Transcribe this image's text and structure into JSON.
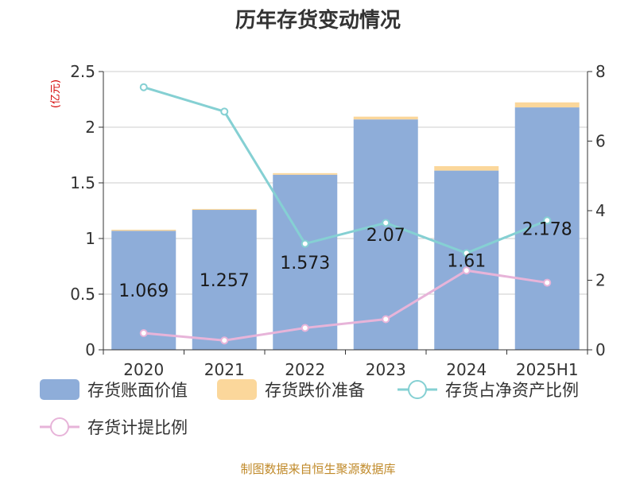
{
  "chart_data": {
    "type": "bar",
    "title": "历年存货变动情况",
    "y_unit_label": "(亿元)",
    "categories": [
      "2020",
      "2021",
      "2022",
      "2023",
      "2024",
      "2025H1"
    ],
    "ylim": [
      0,
      2.5
    ],
    "yticks": [
      "0",
      "0.5",
      "1",
      "1.5",
      "2",
      "2.5"
    ],
    "y2lim": [
      0,
      8
    ],
    "y2ticks": [
      "0",
      "2",
      "4",
      "6",
      "8"
    ],
    "grid": true,
    "legend_position": "bottom",
    "series": [
      {
        "name": "存货账面价值",
        "kind": "bar",
        "stack": "inv",
        "color": "#8eadd9",
        "values": [
          1.069,
          1.257,
          1.573,
          2.07,
          1.61,
          2.178
        ],
        "labels": [
          "1.069",
          "1.257",
          "1.573",
          "2.07",
          "1.61",
          "2.178"
        ]
      },
      {
        "name": "存货跌价准备",
        "kind": "bar",
        "stack": "inv",
        "color": "#fbd79b",
        "values": [
          0.01,
          0.008,
          0.014,
          0.025,
          0.04,
          0.045
        ]
      },
      {
        "name": "存货占净资产比例",
        "kind": "line",
        "axis": "right",
        "color": "#85d0d3",
        "values": [
          7.55,
          6.85,
          3.05,
          3.65,
          2.78,
          3.72
        ]
      },
      {
        "name": "存货计提比例",
        "kind": "line",
        "axis": "right",
        "color": "#e7b4d9",
        "values": [
          0.48,
          0.27,
          0.63,
          0.88,
          2.28,
          1.93
        ]
      }
    ]
  },
  "footer": {
    "source": "制图数据来自恒生聚源数据库"
  }
}
